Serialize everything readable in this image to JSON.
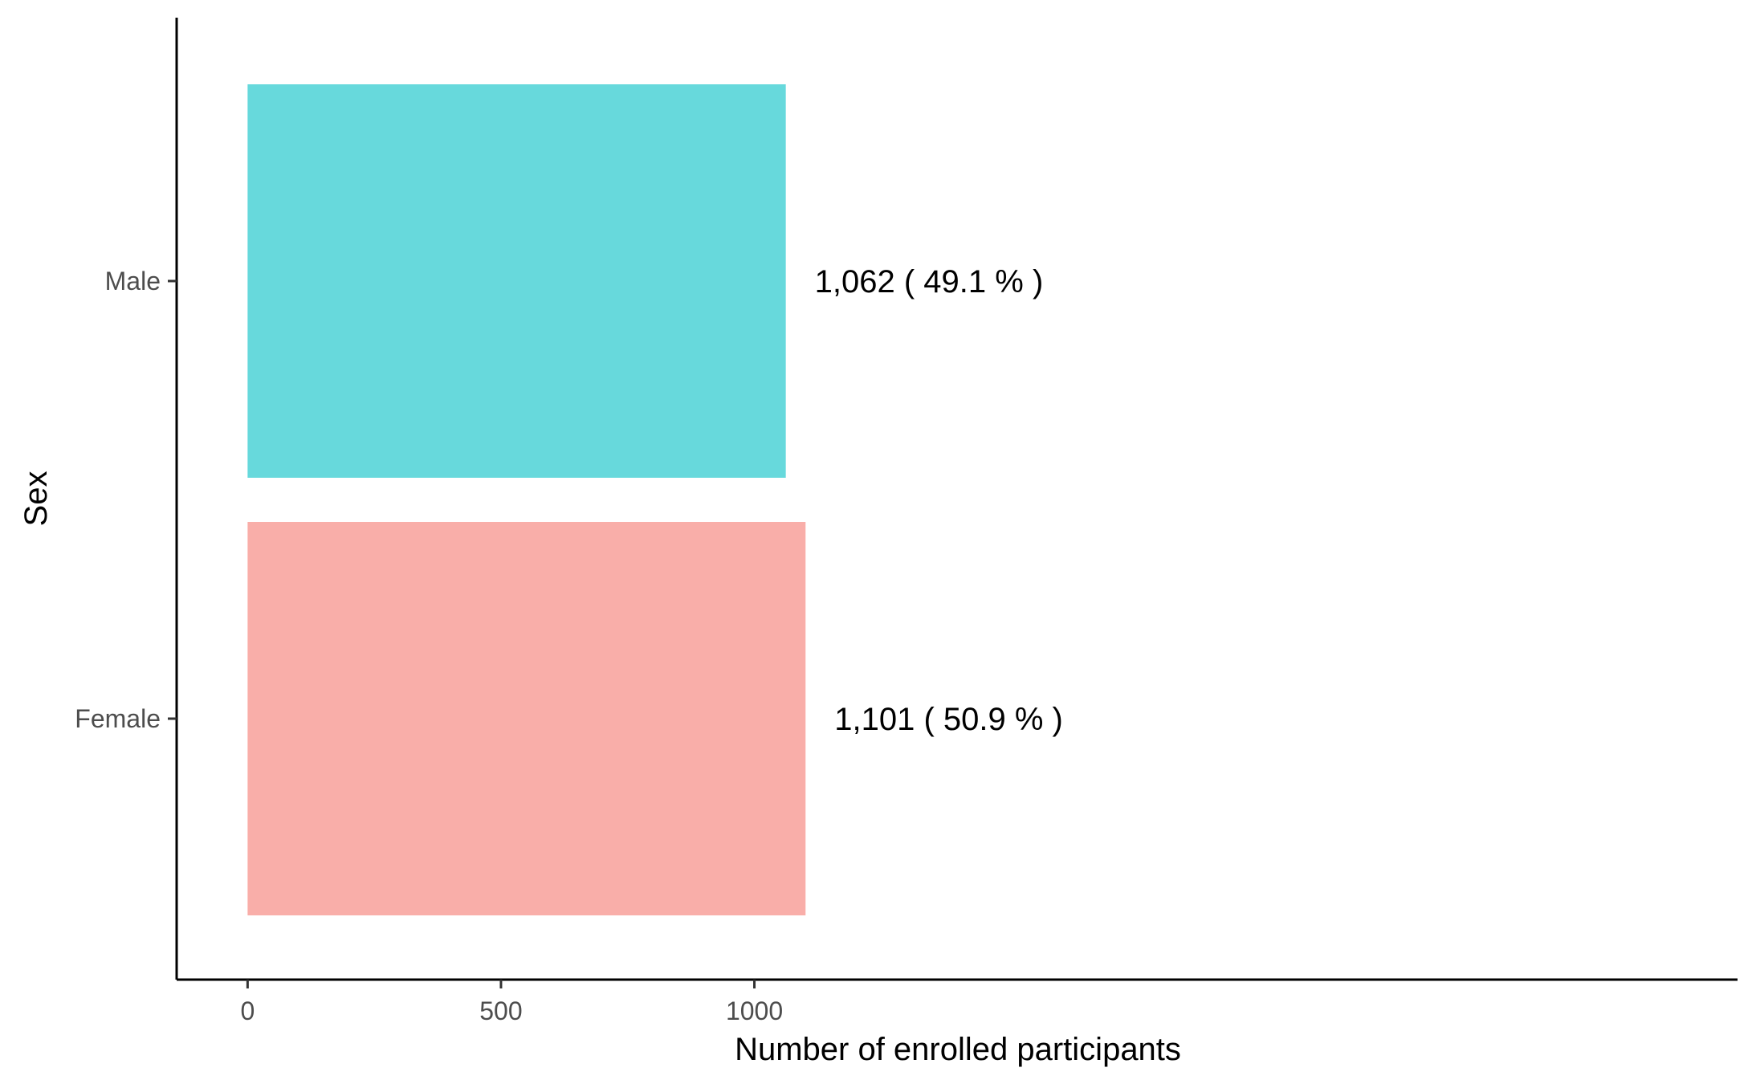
{
  "chart_data": {
    "type": "bar",
    "orientation": "horizontal",
    "categories": [
      "Male",
      "Female"
    ],
    "values": [
      1062,
      1101
    ],
    "data_labels": [
      "1,062 ( 49.1 % )",
      "1,101 ( 50.9 % )"
    ],
    "colors": [
      "#67D9DC",
      "#F9AEA9"
    ],
    "xlabel": "Number of enrolled participants",
    "ylabel": "Sex",
    "xlim": [
      -140,
      2940
    ],
    "x_ticks": [
      0,
      500,
      1000
    ],
    "x_tick_labels": [
      "0",
      "500",
      "1000"
    ],
    "grid": false,
    "legend": "none"
  }
}
